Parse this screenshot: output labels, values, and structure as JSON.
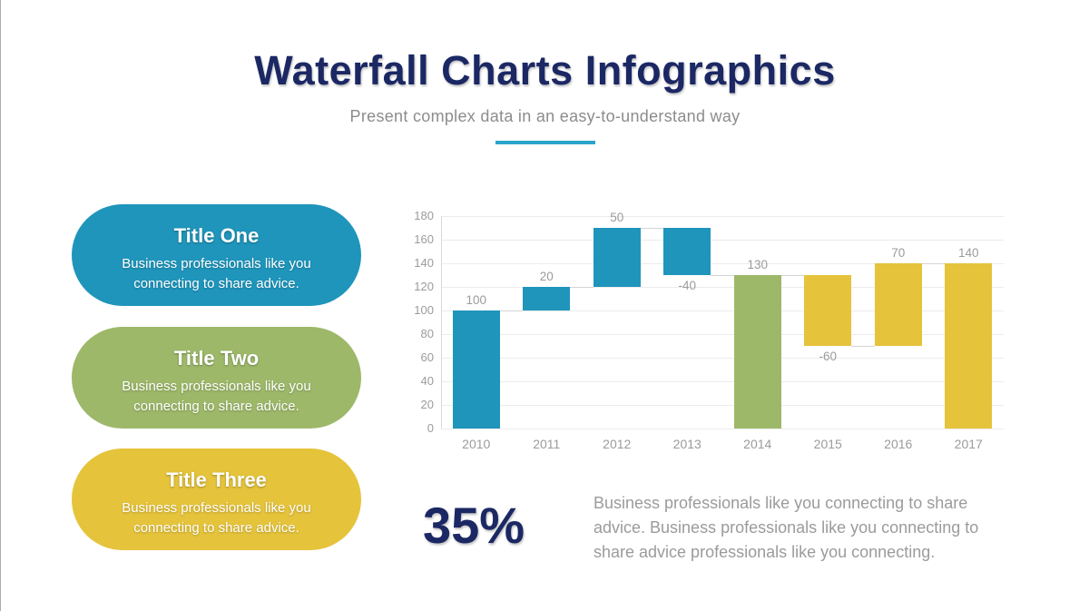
{
  "slide": {
    "title": "Waterfall Charts Infographics",
    "subtitle": "Present complex data in an easy-to-understand way",
    "colors": {
      "navy": "#1B2864",
      "accent_teal": "#2AA6CB",
      "subtitle_gray": "#8C8C8C",
      "chart_text_gray": "#9B9B9B",
      "teal": "#1F95BB",
      "green": "#9DB869",
      "yellow": "#E5C33B"
    }
  },
  "cards": [
    {
      "title": "Title One",
      "body": "Business professionals like you connecting to share advice.",
      "color": "#1F95BB"
    },
    {
      "title": "Title Two",
      "body": "Business professionals like you connecting to share advice.",
      "color": "#9DB869"
    },
    {
      "title": "Title Three",
      "body": "Business professionals like you connecting to share advice.",
      "color": "#E5C33B"
    }
  ],
  "chart_data": {
    "type": "bar",
    "subtype": "waterfall",
    "title": "",
    "xlabel": "",
    "ylabel": "",
    "categories": [
      "2010",
      "2011",
      "2012",
      "2013",
      "2014",
      "2015",
      "2016",
      "2017"
    ],
    "bars": [
      {
        "category": "2010",
        "from": 0,
        "to": 100,
        "value": 100,
        "label": "100",
        "color": "#1F95BB",
        "label_position": "above"
      },
      {
        "category": "2011",
        "from": 100,
        "to": 120,
        "value": 20,
        "label": "20",
        "color": "#1F95BB",
        "label_position": "above"
      },
      {
        "category": "2012",
        "from": 120,
        "to": 170,
        "value": 50,
        "label": "50",
        "color": "#1F95BB",
        "label_position": "above"
      },
      {
        "category": "2013",
        "from": 170,
        "to": 130,
        "value": -40,
        "label": "-40",
        "color": "#1F95BB",
        "label_position": "below"
      },
      {
        "category": "2014",
        "from": 0,
        "to": 130,
        "value": 130,
        "label": "130",
        "color": "#9DB869",
        "label_position": "above"
      },
      {
        "category": "2015",
        "from": 130,
        "to": 70,
        "value": -60,
        "label": "-60",
        "color": "#E5C33B",
        "label_position": "below"
      },
      {
        "category": "2016",
        "from": 70,
        "to": 140,
        "value": 70,
        "label": "70",
        "color": "#E5C33B",
        "label_position": "above"
      },
      {
        "category": "2017",
        "from": 0,
        "to": 140,
        "value": 140,
        "label": "140",
        "color": "#E5C33B",
        "label_position": "above"
      }
    ],
    "connector_levels": [
      100,
      120,
      170,
      130,
      130,
      70,
      140
    ],
    "y_ticks": [
      0,
      20,
      40,
      60,
      80,
      100,
      120,
      140,
      160,
      180
    ],
    "ylim": [
      0,
      180
    ],
    "grid": true,
    "legend": "none"
  },
  "stat": {
    "value": "35%",
    "description": "Business professionals like you connecting to share advice. Business professionals like you connecting to share advice professionals like you connecting."
  }
}
